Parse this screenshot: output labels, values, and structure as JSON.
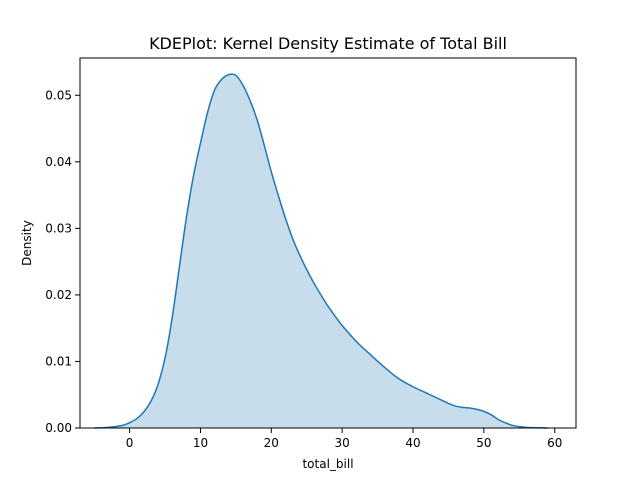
{
  "chart_data": {
    "type": "area",
    "title": "KDEPlot: Kernel Density Estimate of Total Bill",
    "xlabel": "total_bill",
    "ylabel": "Density",
    "xlim": [
      -7.0,
      63.0
    ],
    "ylim": [
      0.0,
      0.0556
    ],
    "xticks": [
      0,
      10,
      20,
      30,
      40,
      50,
      60
    ],
    "xtick_labels": [
      "0",
      "10",
      "20",
      "30",
      "40",
      "50",
      "60"
    ],
    "yticks": [
      0.0,
      0.01,
      0.02,
      0.03,
      0.04,
      0.05
    ],
    "ytick_labels": [
      "0.00",
      "0.01",
      "0.02",
      "0.03",
      "0.04",
      "0.05"
    ],
    "grid": false,
    "series": [
      {
        "line_color": "#1f77b4",
        "fill_color": "#1f77b4",
        "fill_opacity": 0.25,
        "x": [
          -5,
          -3,
          -1,
          0,
          1,
          2,
          3,
          4,
          5,
          6,
          7,
          8,
          9,
          10,
          11,
          12,
          13,
          14,
          15,
          16,
          17,
          18,
          19,
          20,
          21,
          22,
          23,
          24,
          25,
          26,
          27,
          28,
          29,
          30,
          32,
          34,
          36,
          38,
          40,
          42,
          44,
          45,
          46,
          47,
          48,
          49,
          50,
          51,
          52,
          53,
          54,
          55,
          56,
          57,
          58,
          59
        ],
        "y": [
          0.0,
          0.0001,
          0.0004,
          0.0008,
          0.0014,
          0.0024,
          0.004,
          0.0065,
          0.0105,
          0.0165,
          0.024,
          0.0315,
          0.0378,
          0.0428,
          0.0474,
          0.0508,
          0.0524,
          0.0531,
          0.053,
          0.0515,
          0.0492,
          0.0463,
          0.0425,
          0.0385,
          0.0349,
          0.0315,
          0.0285,
          0.026,
          0.0238,
          0.0218,
          0.02,
          0.0183,
          0.0168,
          0.0154,
          0.013,
          0.011,
          0.0091,
          0.0074,
          0.0062,
          0.0052,
          0.0042,
          0.0037,
          0.0033,
          0.0031,
          0.003,
          0.0028,
          0.0025,
          0.002,
          0.0013,
          0.0008,
          0.0004,
          0.0002,
          0.0001,
          5e-05,
          2e-05,
          0.0
        ]
      }
    ]
  }
}
